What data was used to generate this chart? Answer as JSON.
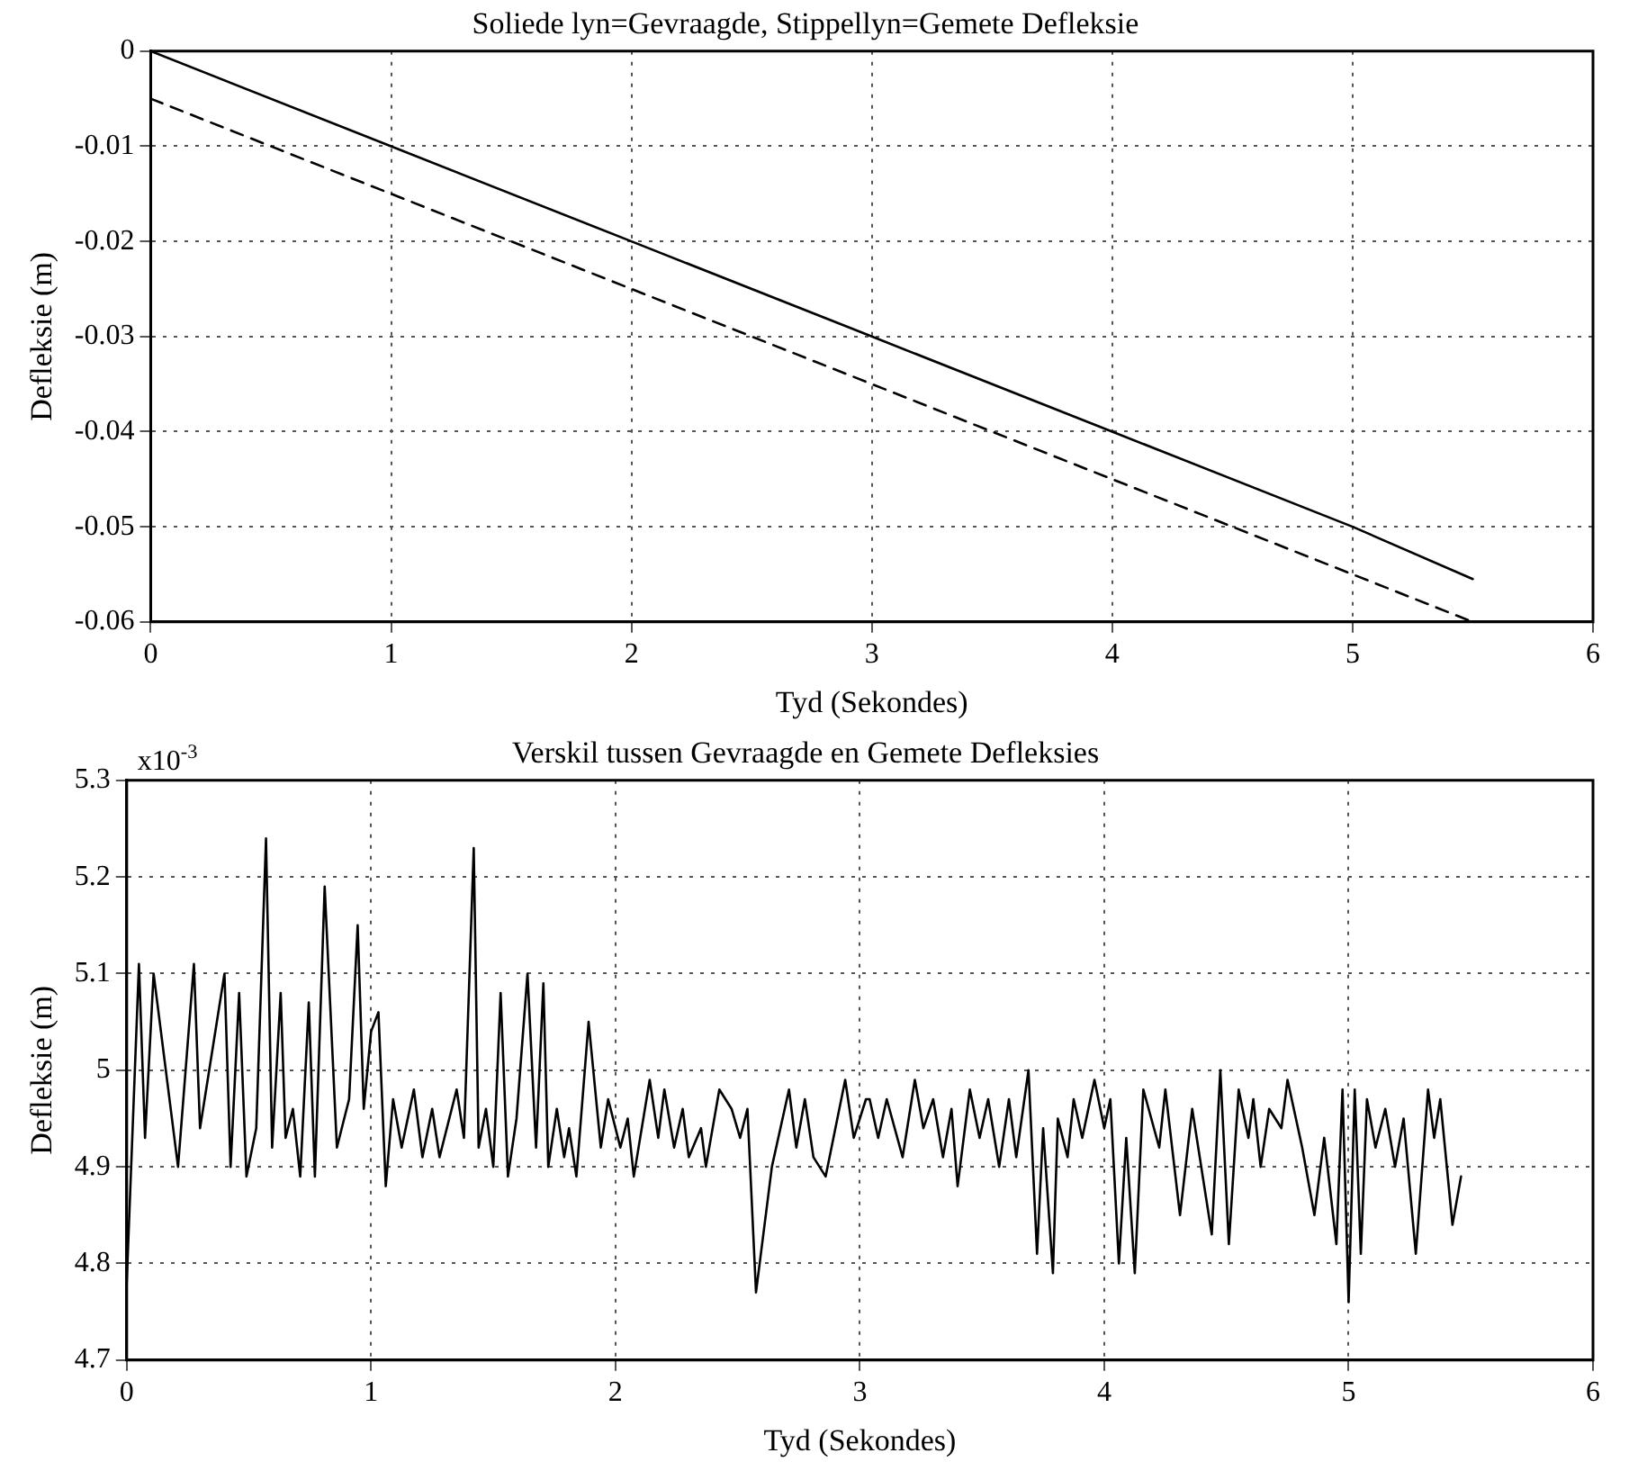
{
  "chart_data": [
    {
      "type": "line",
      "title": "Soliede lyn=Gevraagde, Stippellyn=Gemete Defleksie",
      "xlabel": "Tyd (Sekondes)",
      "ylabel": "Defleksie (m)",
      "xlim": [
        0,
        6
      ],
      "xticks": [
        0,
        1,
        2,
        3,
        4,
        5,
        6
      ],
      "ylim": [
        -0.06,
        0
      ],
      "yticks": [
        -0.06,
        -0.05,
        -0.04,
        -0.03,
        -0.02,
        -0.01,
        0
      ],
      "grid": true,
      "legend": false,
      "series": [
        {
          "color": "#000000",
          "line_style": "solid",
          "x": [
            0,
            1,
            2,
            3,
            4,
            5,
            5.5
          ],
          "values": [
            0,
            -0.01,
            -0.02,
            -0.03,
            -0.04,
            -0.05,
            -0.0555
          ]
        },
        {
          "color": "#000000",
          "line_style": "dashed",
          "x": [
            0,
            1,
            2,
            3,
            4,
            5,
            5.5
          ],
          "values": [
            -0.005,
            -0.015,
            -0.025,
            -0.035,
            -0.045,
            -0.055,
            -0.06
          ]
        }
      ]
    },
    {
      "type": "line",
      "title": "Verskil tussen Gevraagde en Gemete Defleksies",
      "xlabel": "Tyd (Sekondes)",
      "ylabel": "Defleksie (m)",
      "annotations": [
        "x10$^{-3}$"
      ],
      "xlim": [
        0,
        6
      ],
      "xticks": [
        0,
        1,
        2,
        3,
        4,
        5,
        6
      ],
      "ylim": [
        4.7,
        5.3
      ],
      "yticks": [
        4.7,
        4.8,
        4.9,
        5,
        5.1,
        5.2,
        5.3
      ],
      "grid": true,
      "legend": false,
      "series": [
        {
          "color": "#000000",
          "line_style": "solid",
          "x": [
            0,
            0.05,
            0.075,
            0.11,
            0.21,
            0.275,
            0.3,
            0.4,
            0.425,
            0.46,
            0.49,
            0.53,
            0.57,
            0.595,
            0.63,
            0.65,
            0.68,
            0.71,
            0.745,
            0.77,
            0.81,
            0.86,
            0.91,
            0.945,
            0.97,
            1.0,
            1.03,
            1.06,
            1.09,
            1.125,
            1.175,
            1.21,
            1.25,
            1.28,
            1.35,
            1.38,
            1.42,
            1.44,
            1.47,
            1.5,
            1.53,
            1.56,
            1.595,
            1.64,
            1.675,
            1.705,
            1.725,
            1.76,
            1.79,
            1.81,
            1.84,
            1.89,
            1.94,
            1.97,
            2.02,
            2.05,
            2.075,
            2.14,
            2.175,
            2.2,
            2.24,
            2.275,
            2.3,
            2.35,
            2.37,
            2.425,
            2.475,
            2.51,
            2.54,
            2.575,
            2.64,
            2.71,
            2.74,
            2.775,
            2.81,
            2.86,
            2.94,
            2.975,
            3.025,
            3.04,
            3.075,
            3.11,
            3.175,
            3.225,
            3.26,
            3.3,
            3.34,
            3.375,
            3.4,
            3.45,
            3.49,
            3.525,
            3.57,
            3.61,
            3.64,
            3.69,
            3.725,
            3.75,
            3.79,
            3.81,
            3.85,
            3.875,
            3.91,
            3.96,
            4.0,
            4.025,
            4.06,
            4.09,
            4.125,
            4.16,
            4.225,
            4.25,
            4.31,
            4.36,
            4.44,
            4.475,
            4.51,
            4.55,
            4.59,
            4.61,
            4.64,
            4.675,
            4.725,
            4.75,
            4.81,
            4.86,
            4.9,
            4.95,
            4.975,
            5.0,
            5.025,
            5.05,
            5.075,
            5.11,
            5.15,
            5.19,
            5.225,
            5.275,
            5.325,
            5.35,
            5.375,
            5.425,
            5.46
          ],
          "values": [
            4.78,
            5.11,
            4.93,
            5.1,
            4.9,
            5.11,
            4.94,
            5.1,
            4.9,
            5.08,
            4.89,
            4.94,
            5.24,
            4.92,
            5.08,
            4.93,
            4.96,
            4.89,
            5.07,
            4.89,
            5.19,
            4.92,
            4.97,
            5.15,
            4.96,
            5.04,
            5.06,
            4.88,
            4.97,
            4.92,
            4.98,
            4.91,
            4.96,
            4.91,
            4.98,
            4.93,
            5.23,
            4.92,
            4.96,
            4.9,
            5.08,
            4.89,
            4.95,
            5.1,
            4.92,
            5.09,
            4.9,
            4.96,
            4.91,
            4.94,
            4.89,
            5.05,
            4.92,
            4.97,
            4.92,
            4.95,
            4.89,
            4.99,
            4.93,
            4.98,
            4.92,
            4.96,
            4.91,
            4.94,
            4.9,
            4.98,
            4.96,
            4.93,
            4.96,
            4.77,
            4.9,
            4.98,
            4.92,
            4.97,
            4.91,
            4.89,
            4.99,
            4.93,
            4.97,
            4.97,
            4.93,
            4.97,
            4.91,
            4.99,
            4.94,
            4.97,
            4.91,
            4.96,
            4.88,
            4.98,
            4.93,
            4.97,
            4.9,
            4.97,
            4.91,
            5.0,
            4.81,
            4.94,
            4.79,
            4.95,
            4.91,
            4.97,
            4.93,
            4.99,
            4.94,
            4.97,
            4.8,
            4.93,
            4.79,
            4.98,
            4.92,
            4.98,
            4.85,
            4.96,
            4.83,
            5.0,
            4.82,
            4.98,
            4.93,
            4.97,
            4.9,
            4.96,
            4.94,
            4.99,
            4.92,
            4.85,
            4.93,
            4.82,
            4.98,
            4.76,
            4.98,
            4.81,
            4.97,
            4.92,
            4.96,
            4.9,
            4.95,
            4.81,
            4.98,
            4.93,
            4.97,
            4.84,
            4.89
          ]
        }
      ]
    }
  ]
}
